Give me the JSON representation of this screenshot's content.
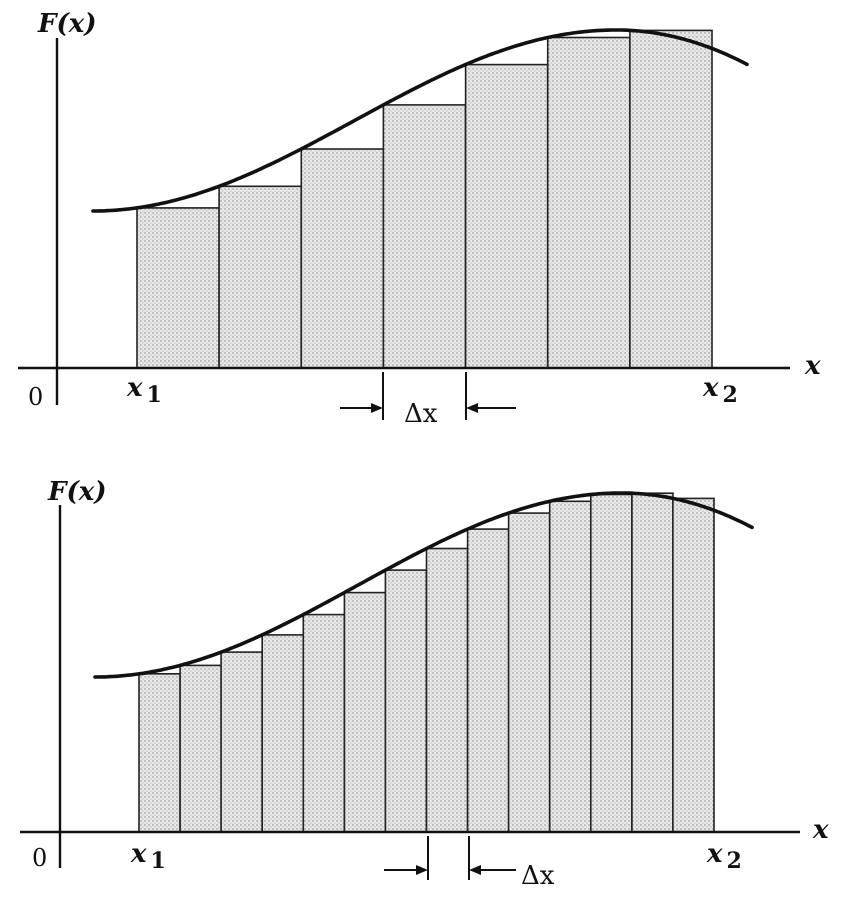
{
  "figure": {
    "panels": [
      {
        "id": "coarse",
        "y_axis_label": "F(x)",
        "x_axis_label": "x",
        "origin_label": "0",
        "x_start_label": "x",
        "x_start_subscript": "1",
        "x_end_label": "x",
        "x_end_subscript": "2",
        "delta_label": "Δx",
        "rectangle_count": 7
      },
      {
        "id": "fine",
        "y_axis_label": "F(x)",
        "x_axis_label": "x",
        "origin_label": "0",
        "x_start_label": "x",
        "x_start_subscript": "1",
        "x_end_label": "x",
        "x_end_subscript": "2",
        "delta_label": "Δx",
        "rectangle_count": 14
      }
    ],
    "colors": {
      "ink": "#111111",
      "rect_fill": "#e6e6e6",
      "stipple": "#8a8a8a",
      "background": "#ffffff"
    }
  }
}
